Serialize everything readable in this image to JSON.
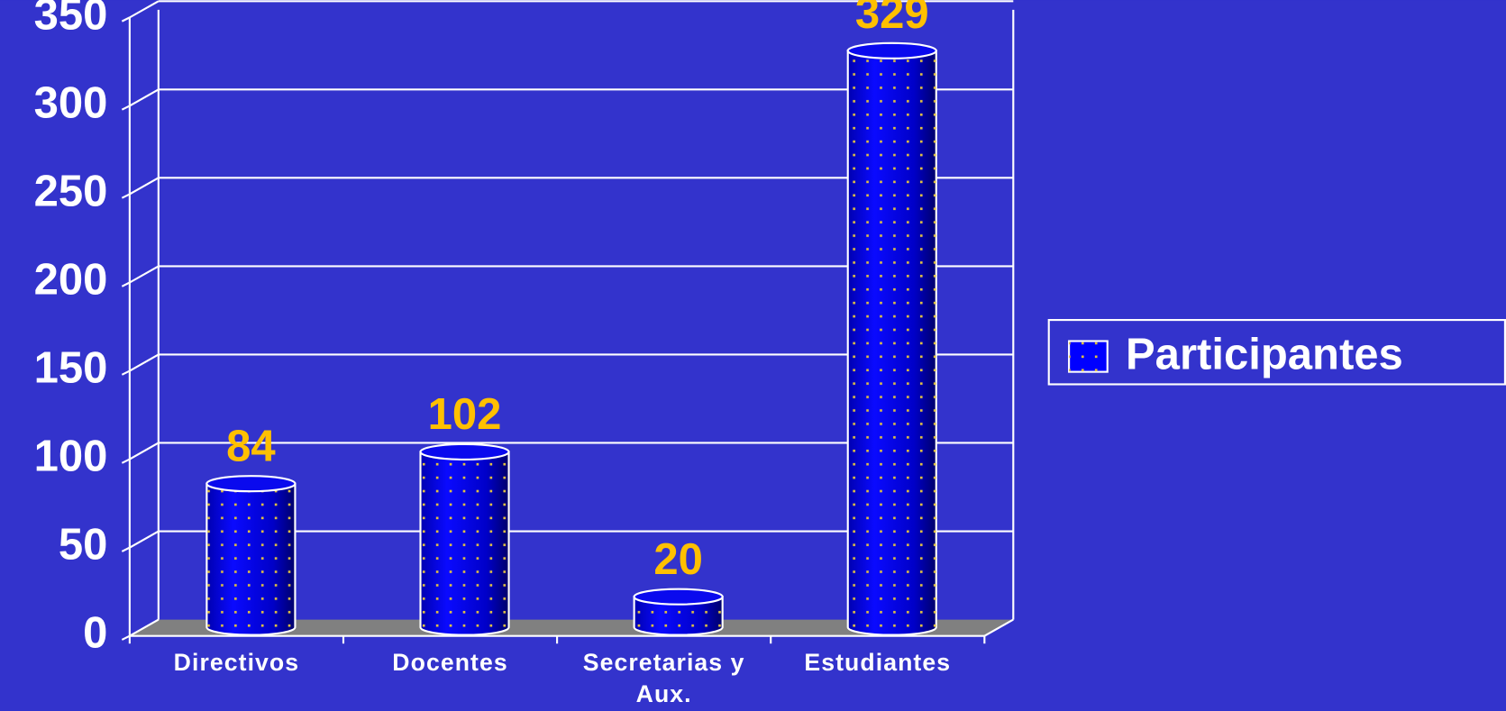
{
  "chart_data": {
    "type": "bar3d",
    "categories": [
      "Directivos",
      "Docentes",
      "Secretarias y Aux.",
      "Estudiantes"
    ],
    "series": [
      {
        "name": "Participantes",
        "color": "#0000ff",
        "values": [
          84,
          102,
          20,
          329
        ]
      }
    ],
    "ylim": [
      0,
      350
    ],
    "yticks": [
      0,
      50,
      100,
      150,
      200,
      250,
      300,
      350
    ],
    "grid": true,
    "legend": "right"
  }
}
